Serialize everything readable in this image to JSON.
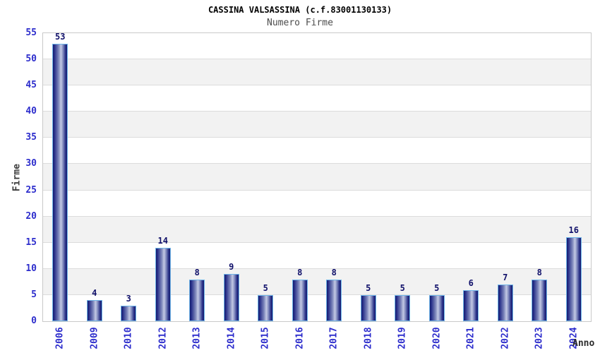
{
  "header": {
    "title": "CASSINA VALSASSINA (c.f.83001130133)",
    "subtitle": "Numero Firme"
  },
  "chart_data": {
    "type": "bar",
    "title": "CASSINA VALSASSINA (c.f.83001130133)",
    "subtitle": "Numero Firme",
    "categories": [
      "2006",
      "2009",
      "2010",
      "2012",
      "2013",
      "2014",
      "2015",
      "2016",
      "2017",
      "2018",
      "2019",
      "2020",
      "2021",
      "2022",
      "2023",
      "2024"
    ],
    "values": [
      53,
      4,
      3,
      14,
      8,
      9,
      5,
      8,
      8,
      5,
      5,
      5,
      6,
      7,
      8,
      16
    ],
    "xlabel": "Anno",
    "ylabel": "Firme",
    "ylim": [
      0,
      55
    ],
    "ytick_step": 5,
    "yticks": [
      0,
      5,
      10,
      15,
      20,
      25,
      30,
      35,
      40,
      45,
      50,
      55
    ],
    "grid": true,
    "legend": false,
    "colors": {
      "bar_dark": "#151b6d",
      "bar_light": "#c3c9e4",
      "bar_border": "#70b6e9",
      "tick_label_blue": "#2d2dcc",
      "value_label_navy": "#10106a",
      "band_gray": "#f2f2f2",
      "band_white": "#ffffff",
      "grid_line": "#dcdcdc",
      "plot_border": "#c9c9c9",
      "title_black": "#000000",
      "subtitle_gray": "#4d4d4d",
      "axis_title_gray": "#3d3d3d"
    }
  }
}
